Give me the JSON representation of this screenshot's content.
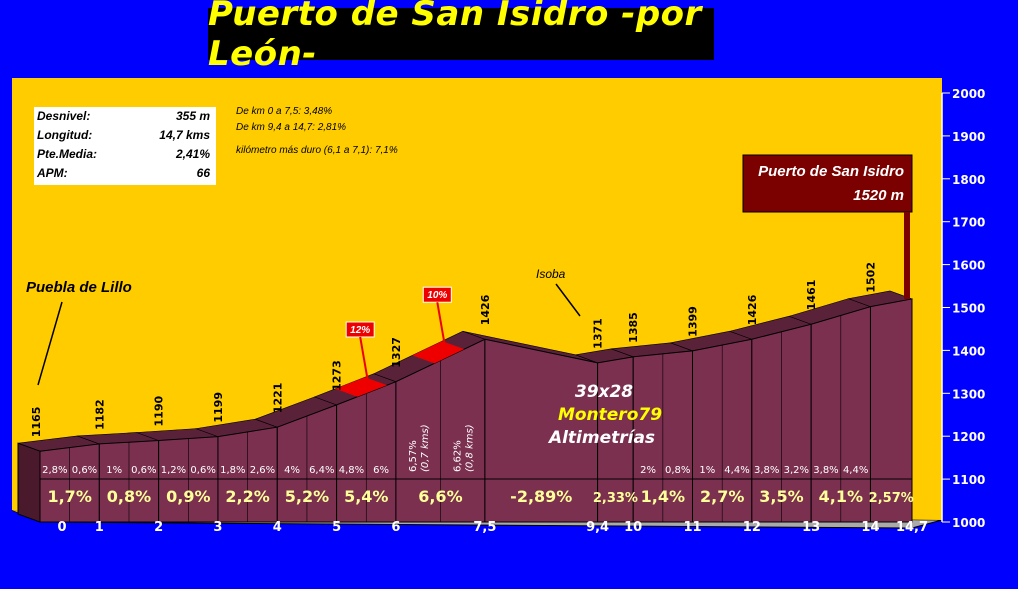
{
  "title": "Puerto de San Isidro -por León-",
  "info": [
    {
      "label": "Desnivel:",
      "value": "355 m"
    },
    {
      "label": "Longitud:",
      "value": "14,7 kms"
    },
    {
      "label": "Pte.Media:",
      "value": "2,41%"
    },
    {
      "label": "APM:",
      "value": "66"
    }
  ],
  "notes": {
    "line1": "De km 0 a 7,5:  3,48%",
    "line2": "De km 9,4 a 14,7:  2,81%",
    "line3": "kilómetro más duro (6,1 a 7,1): 7,1%"
  },
  "places": {
    "start": "Puebla de Lillo",
    "mid": "Isoba",
    "summit_name": "Puerto de San Isidro",
    "summit_alt": "1520 m"
  },
  "credits": {
    "line1": "39x28",
    "line2": "Montero79",
    "line3": "Altimetrías"
  },
  "colors": {
    "background": "#0000ff",
    "plot_bg": "#ffcc00",
    "profile": "#7b3050",
    "title_text": "#ffff00",
    "summit_box": "#7b0000"
  },
  "chart_data": {
    "type": "area",
    "xlabel": "",
    "ylabel": "",
    "ylim": [
      1000,
      2000
    ],
    "y_ticks": [
      1000,
      1100,
      1200,
      1300,
      1400,
      1500,
      1600,
      1700,
      1800,
      1900,
      2000
    ],
    "x_ticks": [
      "0",
      "1",
      "2",
      "3",
      "4",
      "5",
      "6",
      "7,5",
      "9,4",
      "10",
      "11",
      "12",
      "13",
      "14",
      "14,7"
    ],
    "x_tick_values": [
      0,
      1,
      2,
      3,
      4,
      5,
      6,
      7.5,
      9.4,
      10,
      11,
      12,
      13,
      14,
      14.7
    ],
    "x": [
      0,
      1,
      2,
      3,
      4,
      5,
      6,
      7.5,
      9.4,
      10,
      11,
      12,
      13,
      14,
      14.7
    ],
    "y": [
      1165,
      1182,
      1190,
      1199,
      1221,
      1273,
      1327,
      1426,
      1371,
      1385,
      1399,
      1426,
      1461,
      1502,
      1520
    ],
    "altitude_labels": [
      "1165",
      "1182",
      "1190",
      "1199",
      "1221",
      "1273",
      "1327",
      "1426",
      "1371",
      "1385",
      "1399",
      "1426",
      "1461",
      "1502"
    ],
    "segments": [
      {
        "start": 0,
        "end": 1,
        "grade": "1,7%",
        "halves": [
          "2,8%",
          "0,6%"
        ]
      },
      {
        "start": 1,
        "end": 2,
        "grade": "0,8%",
        "halves": [
          "1%",
          "0,6%"
        ]
      },
      {
        "start": 2,
        "end": 3,
        "grade": "0,9%",
        "halves": [
          "1,2%",
          "0,6%"
        ]
      },
      {
        "start": 3,
        "end": 4,
        "grade": "2,2%",
        "halves": [
          "1,8%",
          "2,6%"
        ]
      },
      {
        "start": 4,
        "end": 5,
        "grade": "5,2%",
        "halves": [
          "4%",
          "6,4%"
        ]
      },
      {
        "start": 5,
        "end": 6,
        "grade": "5,4%",
        "halves": [
          "4,8%",
          "6%"
        ]
      },
      {
        "start": 6,
        "end": 7.5,
        "grade": "6,6%",
        "halves": [
          "6,57% (0,7 kms)",
          "6,62% (0,8 kms)"
        ]
      },
      {
        "start": 7.5,
        "end": 9.4,
        "grade": "-2,89%",
        "halves": []
      },
      {
        "start": 9.4,
        "end": 10,
        "grade": "2,33%",
        "halves": []
      },
      {
        "start": 10,
        "end": 11,
        "grade": "1,4%",
        "halves": [
          "2%",
          "0,8%"
        ]
      },
      {
        "start": 11,
        "end": 12,
        "grade": "2,7%",
        "halves": [
          "1%",
          "4,4%"
        ]
      },
      {
        "start": 12,
        "end": 13,
        "grade": "3,5%",
        "halves": [
          "3,8%",
          "3,2%"
        ]
      },
      {
        "start": 13,
        "end": 14,
        "grade": "4,1%",
        "halves": [
          "3,8%",
          "4,4%"
        ]
      },
      {
        "start": 14,
        "end": 14.7,
        "grade": "2,57%",
        "halves": []
      }
    ],
    "steep_markers": [
      {
        "km": 5.6,
        "label": "12%"
      },
      {
        "km": 6.9,
        "label": "10%"
      }
    ]
  }
}
